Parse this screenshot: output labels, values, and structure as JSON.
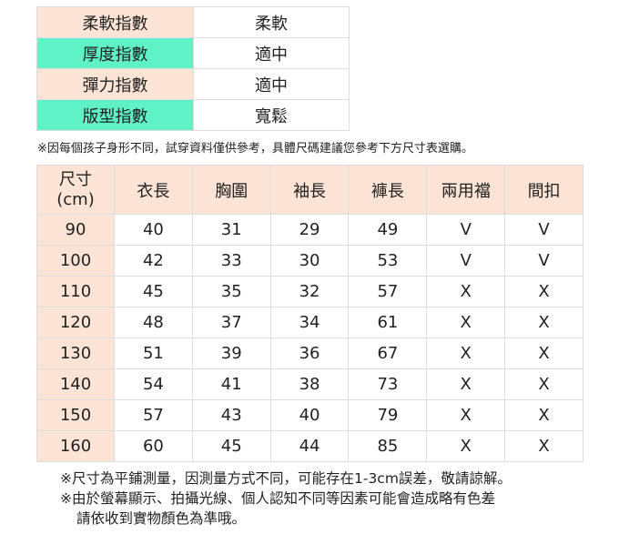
{
  "attributes": [
    {
      "label": "柔軟指數",
      "value": "柔軟",
      "color": "#fbe4d6"
    },
    {
      "label": "厚度指數",
      "value": "適中",
      "color": "#5ff2c6"
    },
    {
      "label": "彈力指數",
      "value": "適中",
      "color": "#fbe4d6"
    },
    {
      "label": "版型指數",
      "value": "寬鬆",
      "color": "#5ff2c6"
    }
  ],
  "note_top": "※因每個孩子身形不同，試穿資料僅供參考，具體尺碼建議您參考下方尺寸表選購。",
  "size_table": {
    "headers": [
      "尺寸\n(cm)",
      "衣長",
      "胸圍",
      "袖長",
      "褲長",
      "兩用襠",
      "間扣"
    ],
    "rows": [
      [
        "90",
        "40",
        "31",
        "29",
        "49",
        "V",
        "V"
      ],
      [
        "100",
        "42",
        "33",
        "30",
        "53",
        "V",
        "V"
      ],
      [
        "110",
        "45",
        "35",
        "32",
        "57",
        "X",
        "X"
      ],
      [
        "120",
        "48",
        "37",
        "34",
        "61",
        "X",
        "X"
      ],
      [
        "130",
        "51",
        "39",
        "36",
        "67",
        "X",
        "X"
      ],
      [
        "140",
        "54",
        "41",
        "38",
        "73",
        "X",
        "X"
      ],
      [
        "150",
        "57",
        "43",
        "40",
        "79",
        "X",
        "X"
      ],
      [
        "160",
        "60",
        "45",
        "44",
        "85",
        "X",
        "X"
      ]
    ]
  },
  "notes": [
    "※尺寸為平鋪測量，因測量方式不同，可能存在1-3cm誤差，敬請諒解。",
    "※由於螢幕顯示、拍攝光線、個人認知不同等因素可能會造成略有色差",
    "請依收到實物顏色為準哦。"
  ]
}
